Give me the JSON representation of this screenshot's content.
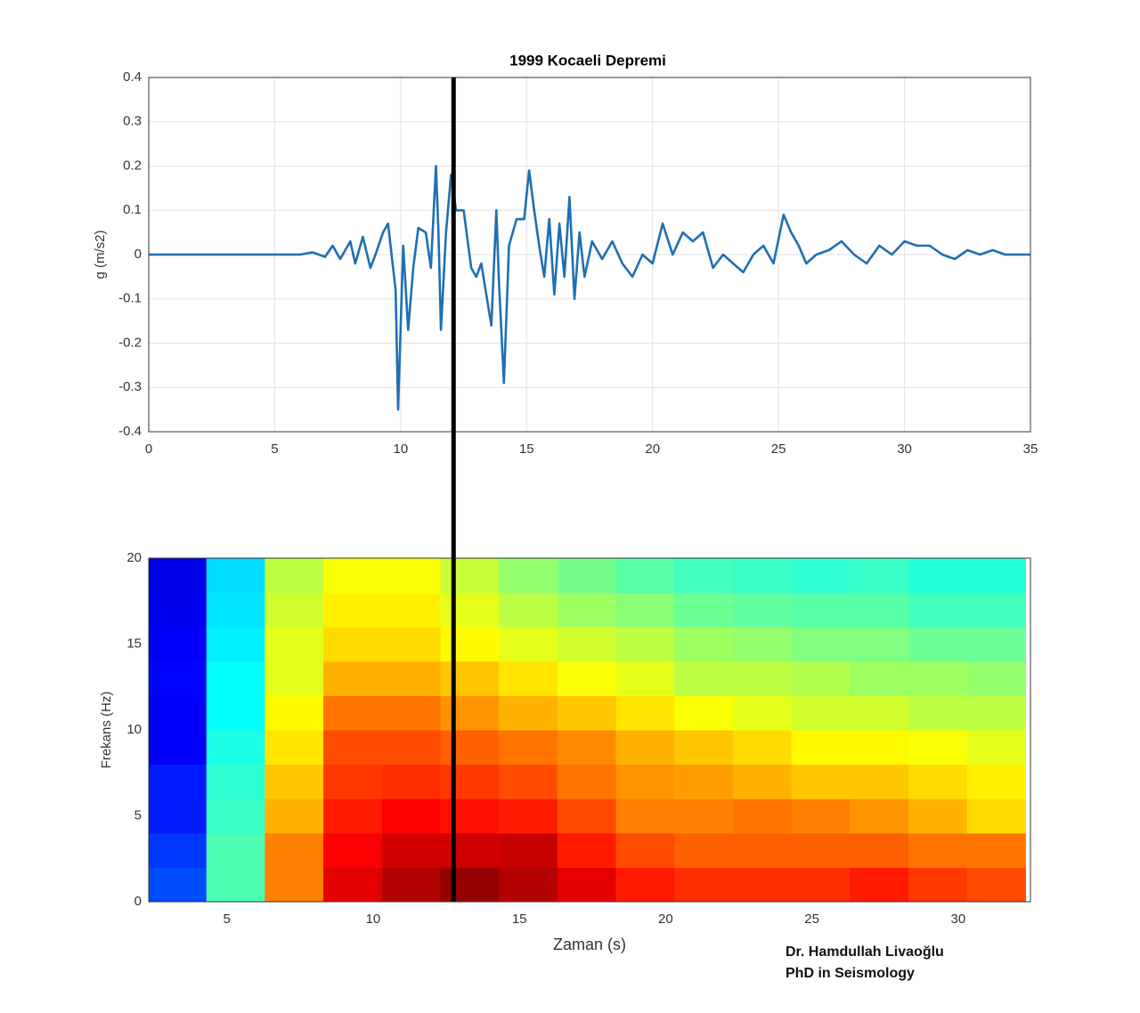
{
  "chart_data": [
    {
      "type": "line",
      "title": "1999 Kocaeli Depremi",
      "ylabel": "g (m/s2)",
      "xlim": [
        0,
        35
      ],
      "ylim": [
        -0.4,
        0.4
      ],
      "xticks": [
        0,
        5,
        10,
        15,
        20,
        25,
        30,
        35
      ],
      "yticks": [
        -0.4,
        -0.3,
        -0.2,
        -0.1,
        0,
        0.1,
        0.2,
        0.3,
        0.4
      ],
      "grid": true,
      "cursor_x": 12.1,
      "x": [
        0,
        6,
        6.5,
        7,
        7.3,
        7.6,
        8,
        8.2,
        8.5,
        8.8,
        9,
        9.3,
        9.5,
        9.8,
        9.9,
        10.1,
        10.3,
        10.5,
        10.7,
        11,
        11.2,
        11.4,
        11.5,
        11.6,
        11.8,
        12,
        12.2,
        12.5,
        12.8,
        13,
        13.2,
        13.4,
        13.6,
        13.8,
        13.9,
        14.1,
        14.3,
        14.6,
        14.9,
        15.1,
        15.3,
        15.5,
        15.7,
        15.9,
        16.1,
        16.3,
        16.5,
        16.7,
        16.9,
        17.1,
        17.3,
        17.6,
        18,
        18.4,
        18.8,
        19.2,
        19.6,
        20,
        20.4,
        20.8,
        21.2,
        21.6,
        22,
        22.4,
        22.8,
        23.2,
        23.6,
        24,
        24.4,
        24.8,
        25.2,
        25.5,
        25.8,
        26.1,
        26.5,
        27,
        27.5,
        28,
        28.5,
        29,
        29.5,
        30,
        30.5,
        31,
        31.5,
        32,
        32.5,
        33,
        33.5,
        34,
        35
      ],
      "series": [
        {
          "color": "#1f6fb4",
          "values": [
            0,
            0,
            0.005,
            -0.005,
            0.02,
            -0.01,
            0.03,
            -0.02,
            0.04,
            -0.03,
            0,
            0.05,
            0.07,
            -0.08,
            -0.35,
            0.02,
            -0.17,
            -0.03,
            0.06,
            0.05,
            -0.03,
            0.2,
            0.05,
            -0.17,
            0.05,
            0.18,
            0.1,
            0.1,
            -0.03,
            -0.05,
            -0.02,
            -0.09,
            -0.16,
            0.1,
            -0.06,
            -0.29,
            0.02,
            0.08,
            0.08,
            0.19,
            0.1,
            0.02,
            -0.05,
            0.08,
            -0.09,
            0.07,
            -0.05,
            0.13,
            -0.1,
            0.05,
            -0.05,
            0.03,
            -0.01,
            0.03,
            -0.02,
            -0.05,
            0,
            -0.02,
            0.07,
            0,
            0.05,
            0.03,
            0.05,
            -0.03,
            0,
            -0.02,
            -0.04,
            0,
            0.02,
            -0.02,
            0.09,
            0.05,
            0.02,
            -0.02,
            0,
            0.01,
            0.03,
            0,
            -0.02,
            0.02,
            0,
            0.03,
            0.02,
            0.02,
            0,
            -0.01,
            0.01,
            0,
            0.01,
            0,
            0
          ]
        }
      ]
    },
    {
      "type": "heatmap",
      "xlabel": "Zaman (s)",
      "ylabel": "Frekans (Hz)",
      "xlim": [
        2.33,
        32.47
      ],
      "ylim": [
        0,
        20
      ],
      "xticks": [
        5,
        10,
        15,
        20,
        25,
        30
      ],
      "yticks": [
        0,
        5,
        10,
        15,
        20
      ],
      "colormap": "jet",
      "clim": [
        0,
        10
      ],
      "x": [
        3.3,
        5.3,
        7.3,
        9.3,
        11.3,
        13.3,
        15.3,
        17.3,
        19.3,
        21.3,
        23.3,
        25.3,
        27.3,
        29.3,
        31.3
      ],
      "y": [
        1,
        3,
        5,
        7,
        9,
        11,
        13,
        15,
        17,
        19
      ],
      "values": [
        [
          2,
          4.5,
          7.5,
          9,
          9.5,
          9.8,
          9.5,
          9,
          8.5,
          8.3,
          8.3,
          8.3,
          8.5,
          8.2,
          8
        ],
        [
          1.8,
          4.5,
          7.5,
          8.8,
          9.2,
          9.2,
          9.3,
          8.5,
          8,
          7.8,
          7.8,
          7.8,
          7.8,
          7.6,
          7.6
        ],
        [
          1.5,
          4.3,
          7,
          8.5,
          8.8,
          8.6,
          8.5,
          8,
          7.5,
          7.5,
          7.6,
          7.5,
          7.3,
          7,
          6.6
        ],
        [
          1.5,
          4.2,
          6.8,
          8.2,
          8.3,
          8.2,
          8,
          7.6,
          7.3,
          7.2,
          7,
          6.8,
          6.8,
          6.6,
          6.4
        ],
        [
          1.2,
          4,
          6.5,
          8,
          8,
          7.8,
          7.6,
          7.4,
          7,
          6.8,
          6.6,
          6.3,
          6.3,
          6.2,
          6
        ],
        [
          1.2,
          3.8,
          6.3,
          7.6,
          7.6,
          7.3,
          7,
          6.8,
          6.5,
          6.2,
          6,
          5.8,
          5.8,
          5.6,
          5.6
        ],
        [
          1.3,
          3.8,
          6,
          7,
          7,
          6.8,
          6.5,
          6.2,
          6,
          5.6,
          5.6,
          5.5,
          5.3,
          5.3,
          5.2
        ],
        [
          1.2,
          3.6,
          6,
          6.6,
          6.6,
          6.3,
          6,
          5.8,
          5.6,
          5.3,
          5.2,
          5,
          5,
          4.8,
          4.8
        ],
        [
          1.1,
          3.5,
          5.8,
          6.4,
          6.4,
          6,
          5.6,
          5.3,
          5.1,
          4.8,
          4.7,
          4.6,
          4.6,
          4.4,
          4.4
        ],
        [
          1,
          3.4,
          5.6,
          6.2,
          6.2,
          5.7,
          5.2,
          4.9,
          4.6,
          4.4,
          4.3,
          4.2,
          4.3,
          4.1,
          4.1
        ]
      ]
    }
  ],
  "credit": [
    "Dr. Hamdullah Livaoğlu",
    "PhD in Seismology"
  ]
}
